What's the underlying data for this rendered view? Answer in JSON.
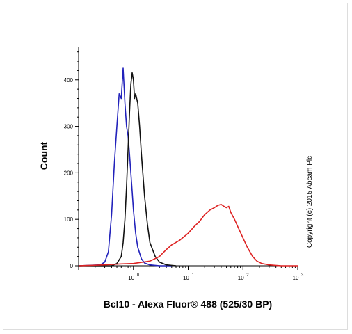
{
  "chart_data": {
    "type": "line",
    "title": "",
    "xlabel": "Bcl10 - Alexa Fluor® 488 (525/30 BP)",
    "ylabel": "Count",
    "xscale": "log",
    "xlim": [
      0.1,
      1000
    ],
    "ylim": [
      0,
      470
    ],
    "y_ticks": [
      0,
      100,
      200,
      300,
      400
    ],
    "x_ticks": [
      {
        "value": 1,
        "base": "10",
        "exp": "0"
      },
      {
        "value": 10,
        "base": "10",
        "exp": "1"
      },
      {
        "value": 100,
        "base": "10",
        "exp": "2"
      },
      {
        "value": 1000,
        "base": "10",
        "exp": "3"
      }
    ],
    "annotation": "Copyright (c) 2015 Abcam Plc",
    "grid": false,
    "series": [
      {
        "color": "#2222bb",
        "x": [
          0.1,
          0.25,
          0.3,
          0.35,
          0.4,
          0.45,
          0.5,
          0.55,
          0.6,
          0.65,
          0.7,
          0.75,
          0.8,
          0.85,
          0.9,
          0.95,
          1.0,
          1.1,
          1.2,
          1.4,
          1.6,
          2.0,
          3.0,
          5.0
        ],
        "y": [
          0,
          2,
          8,
          30,
          110,
          220,
          300,
          370,
          360,
          425,
          350,
          300,
          280,
          240,
          200,
          160,
          120,
          70,
          40,
          15,
          6,
          2,
          0,
          0
        ]
      },
      {
        "color": "#111111",
        "x": [
          0.1,
          0.4,
          0.5,
          0.6,
          0.65,
          0.7,
          0.75,
          0.8,
          0.85,
          0.9,
          0.95,
          1.0,
          1.05,
          1.1,
          1.2,
          1.3,
          1.4,
          1.6,
          1.8,
          2.0,
          2.5,
          3.0,
          4.0,
          6.0
        ],
        "y": [
          0,
          0,
          5,
          20,
          50,
          100,
          170,
          250,
          330,
          390,
          415,
          400,
          360,
          370,
          350,
          300,
          240,
          150,
          90,
          50,
          20,
          8,
          2,
          0
        ]
      },
      {
        "color": "#dd2222",
        "x": [
          0.1,
          0.3,
          0.6,
          1.0,
          2.0,
          3.0,
          4.0,
          5.0,
          7.0,
          10,
          13,
          16,
          20,
          25,
          30,
          35,
          40,
          45,
          50,
          55,
          60,
          70,
          80,
          100,
          120,
          150,
          180,
          220,
          300,
          500,
          1000
        ],
        "y": [
          0,
          2,
          4,
          5,
          10,
          20,
          35,
          45,
          55,
          70,
          85,
          95,
          110,
          120,
          125,
          130,
          132,
          128,
          125,
          128,
          115,
          100,
          85,
          60,
          40,
          20,
          10,
          5,
          2,
          0,
          0
        ]
      }
    ]
  }
}
